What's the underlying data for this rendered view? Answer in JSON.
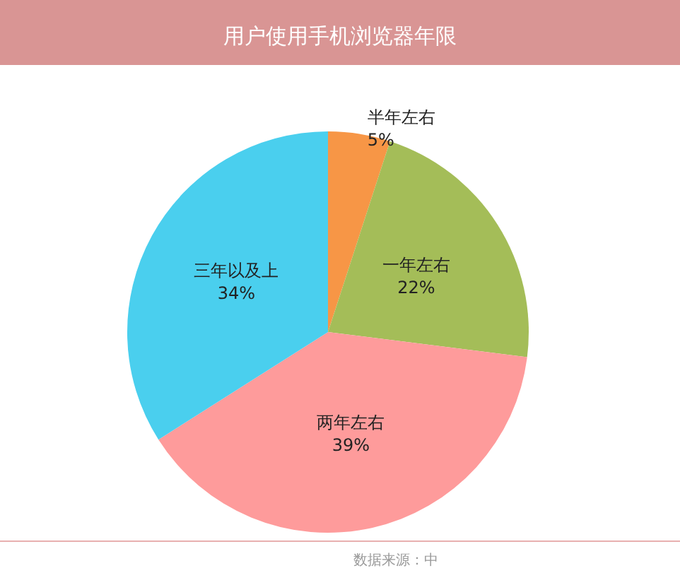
{
  "chart_data": {
    "type": "pie",
    "title": "用户使用手机浏览器年限",
    "categories": [
      "半年左右",
      "一年左右",
      "两年左右",
      "三年以及上"
    ],
    "values": [
      5,
      22,
      39,
      34
    ],
    "colors": [
      "#f79646",
      "#a4bd58",
      "#fe9b9b",
      "#4acfee"
    ],
    "value_labels": [
      "5%",
      "22%",
      "39%",
      "34%"
    ],
    "legend": false,
    "annotations": [
      "数据来源：中"
    ]
  }
}
